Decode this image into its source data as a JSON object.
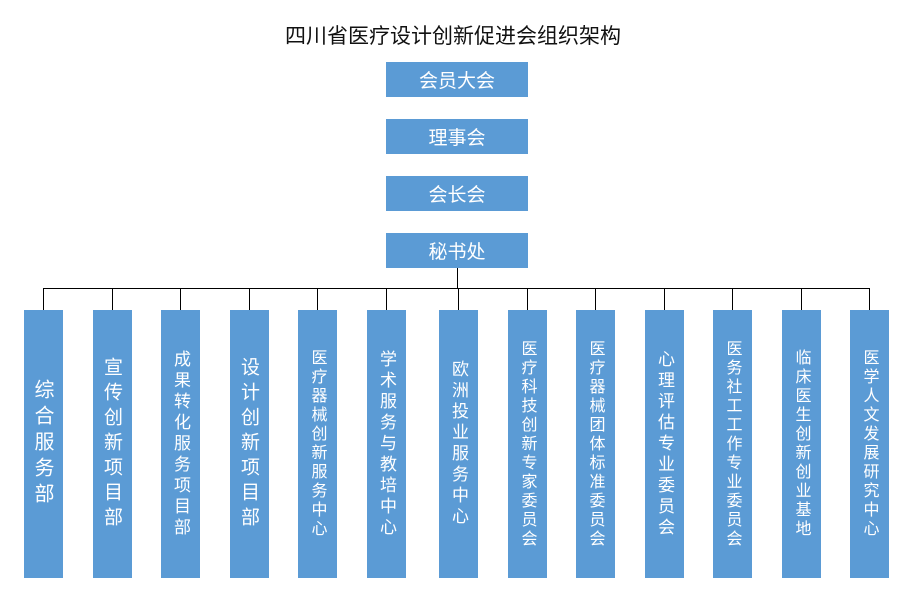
{
  "title": "四川省医疗设计创新促进会组织架构",
  "levels": [
    "会员大会",
    "理事会",
    "会长会",
    "秘书处"
  ],
  "departments": [
    "综合服务部",
    "宣传创新项目部",
    "成果转化服务项目部",
    "设计创新项目部",
    "医疗器械创新服务中心",
    "学术服务与教培中心",
    "欧洲投业服务中心",
    "医疗科技创新专家委员会",
    "医疗器械团体标准委员会",
    "心理评估专业委员会",
    "医务社工工作专业委员会",
    "临床医生创新创业基地",
    "医学人文发展研究中心"
  ],
  "colors": {
    "box": "#5b9bd5",
    "text": "#ffffff",
    "line": "#000000"
  }
}
